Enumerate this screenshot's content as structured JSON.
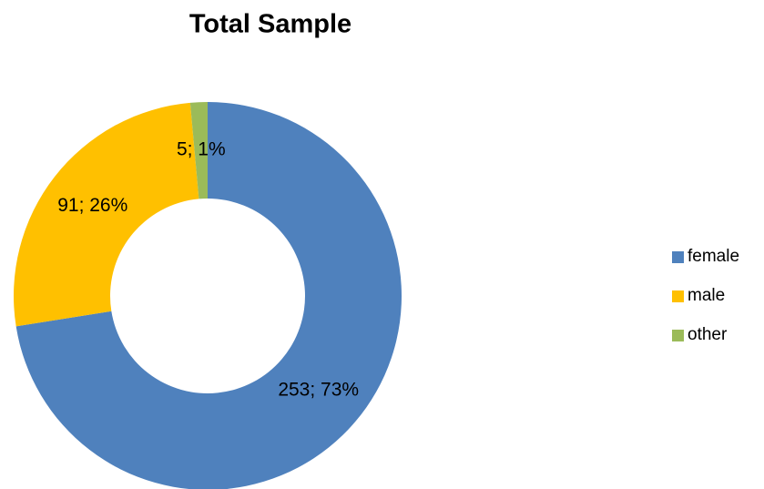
{
  "chart_data": {
    "type": "donut",
    "title": "Total Sample",
    "categories": [
      "female",
      "male",
      "other"
    ],
    "values": [
      253,
      91,
      5
    ],
    "value_labels": [
      "253; 73%",
      "91; 26%",
      "5; 1%"
    ],
    "colors": [
      "#4f81bd",
      "#ffc000",
      "#9bbb59"
    ],
    "legend": "right"
  }
}
